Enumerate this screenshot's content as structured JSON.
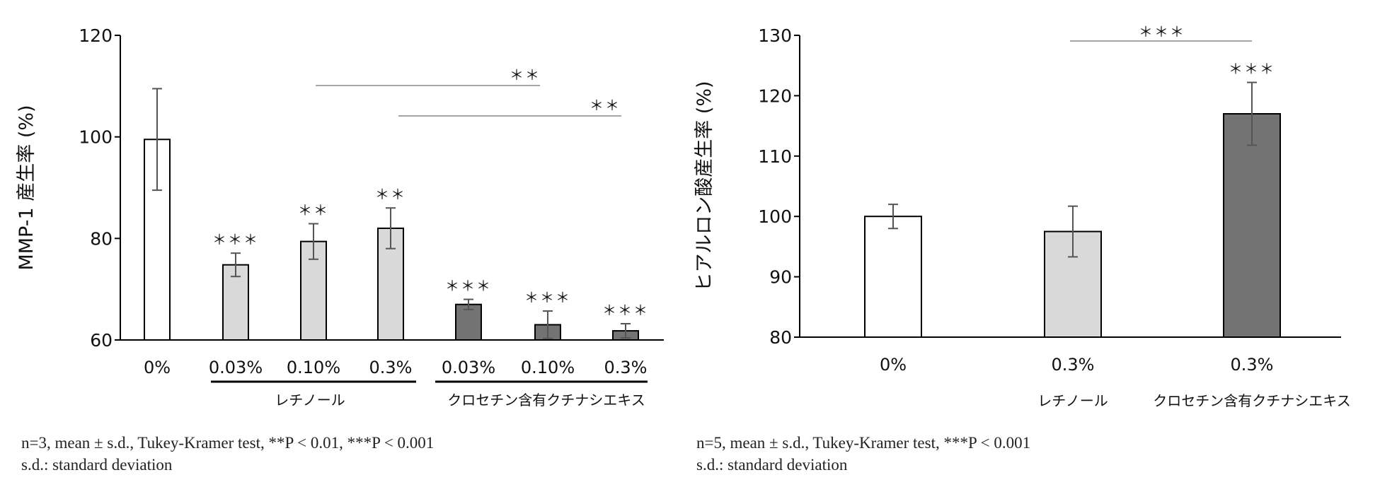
{
  "colors": {
    "control": "#ffffff",
    "retinol": "#d9d9d9",
    "crocetin": "#737373",
    "axis": "#000000",
    "errorbar": "#555555",
    "sigline": "#888888"
  },
  "chart_data": [
    {
      "type": "bar",
      "ylabel": "MMP-1 産生率 (%)",
      "ylim": [
        60,
        120
      ],
      "yticks": [
        "60",
        "80",
        "100",
        "120"
      ],
      "categories": [
        "0%",
        "0.03%",
        "0.10%",
        "0.3%",
        "0.03%",
        "0.10%",
        "0.3%"
      ],
      "values": [
        99.5,
        74.8,
        79.4,
        82.0,
        67.0,
        63.0,
        61.8
      ],
      "errors": [
        10.0,
        2.3,
        3.5,
        4.0,
        1.0,
        2.7,
        1.4
      ],
      "groups": [
        "control",
        "retinol",
        "retinol",
        "retinol",
        "crocetin",
        "crocetin",
        "crocetin"
      ],
      "marks": [
        "",
        "＊＊＊",
        "＊＊",
        "＊＊",
        "＊＊＊",
        "＊＊＊",
        "＊＊＊"
      ],
      "group_labels": [
        {
          "text": "レチノール",
          "from": 1,
          "to": 3
        },
        {
          "text": "クロセチン含有クチナシエキス",
          "from": 4,
          "to": 6
        }
      ],
      "comparisons": [
        {
          "from": 2,
          "to": 5,
          "mark": "＊＊"
        },
        {
          "from": 3,
          "to": 6,
          "mark": "＊＊"
        }
      ],
      "notes": [
        "n=3, mean ± s.d., Tukey-Kramer test, **P < 0.01, ***P < 0.001",
        "s.d.: standard deviation"
      ]
    },
    {
      "type": "bar",
      "ylabel": "ヒアルロン酸産生率 (%)",
      "ylim": [
        80,
        130
      ],
      "yticks": [
        "80",
        "90",
        "100",
        "110",
        "120",
        "130"
      ],
      "categories": [
        "0%",
        "0.3%",
        "0.3%"
      ],
      "values": [
        100.0,
        97.5,
        117.0
      ],
      "errors": [
        2.0,
        4.2,
        5.2
      ],
      "groups": [
        "control",
        "retinol",
        "crocetin"
      ],
      "marks": [
        "",
        "",
        "＊＊＊"
      ],
      "group_labels": [
        {
          "text": "レチノール",
          "from": 1,
          "to": 1
        },
        {
          "text": "クロセチン含有クチナシエキス",
          "from": 2,
          "to": 2
        }
      ],
      "comparisons": [
        {
          "from": 1,
          "to": 2,
          "mark": "＊＊＊"
        }
      ],
      "notes": [
        "n=5, mean ± s.d., Tukey-Kramer test, ***P < 0.001",
        "s.d.: standard deviation"
      ]
    }
  ]
}
